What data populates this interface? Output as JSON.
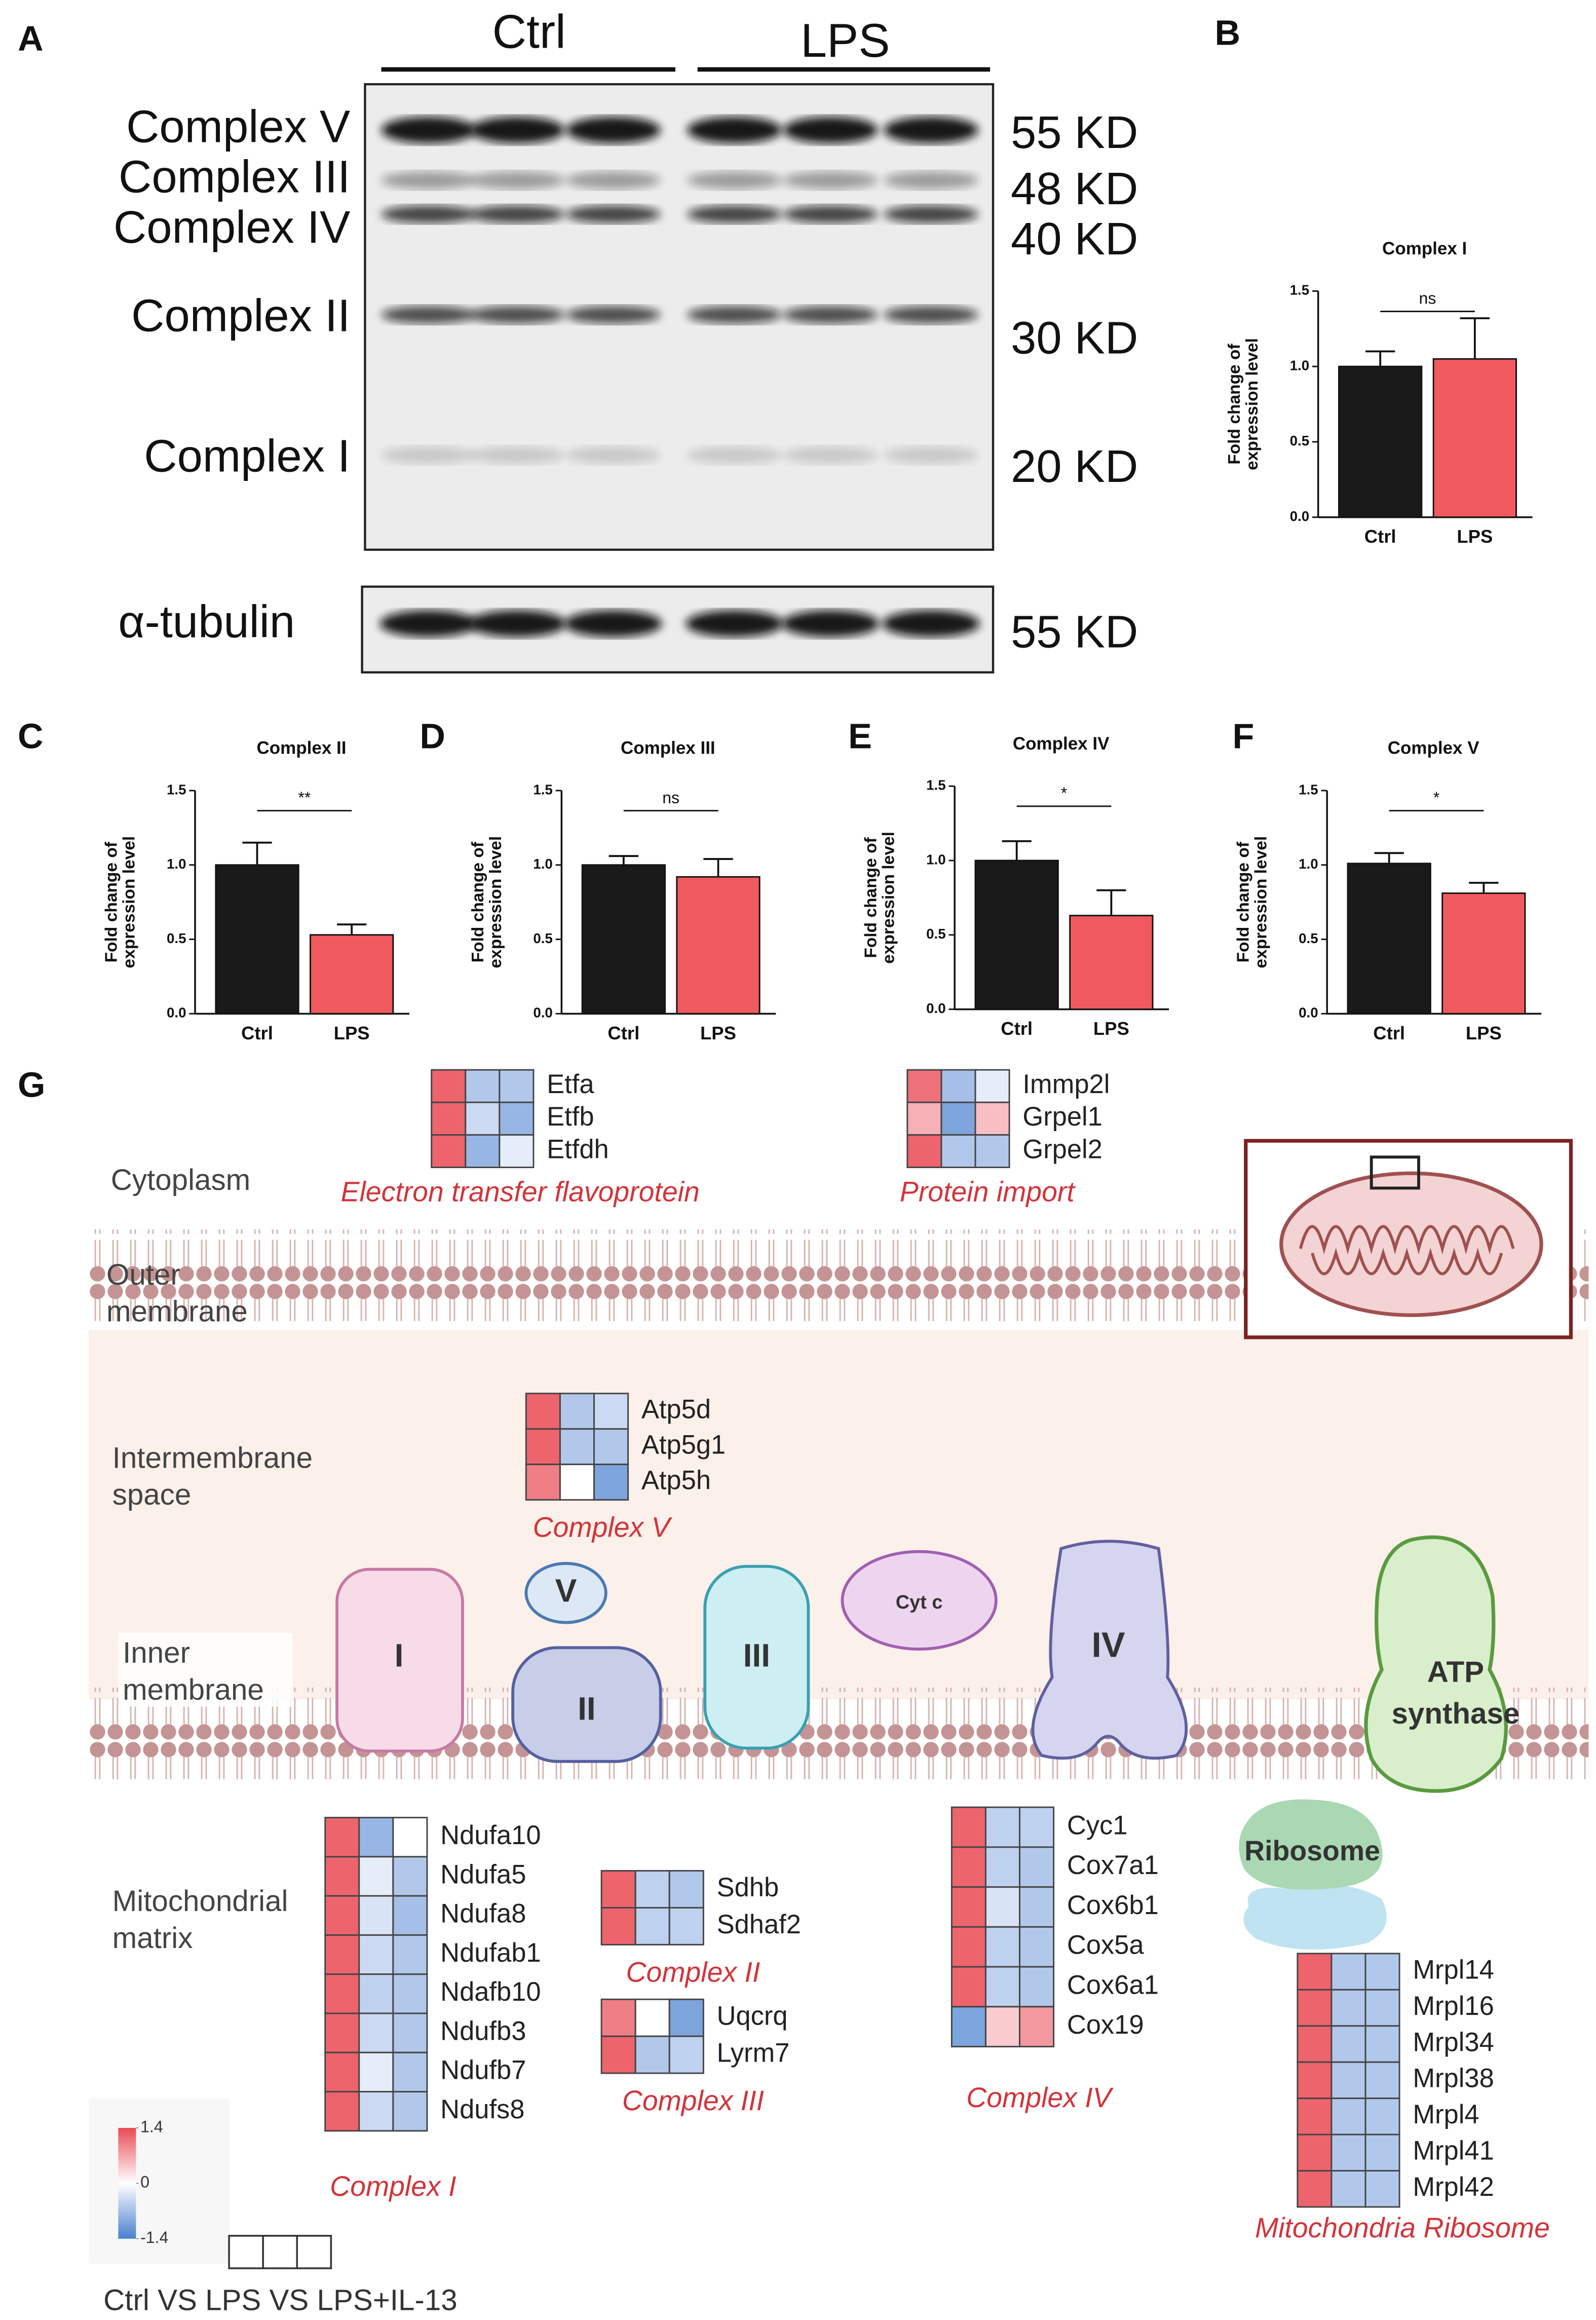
{
  "blot": {
    "panel": "A",
    "groups": [
      "Ctrl",
      "LPS"
    ],
    "bands": [
      "Complex V",
      "Complex III",
      "Complex IV",
      "Complex II",
      "Complex I"
    ],
    "sizes": [
      "55 KD",
      "48 KD",
      "40 KD",
      "30 KD",
      "20 KD"
    ],
    "loading": "α-tubulin",
    "loading_size": "55 KD"
  },
  "chart_data": [
    {
      "type": "bar",
      "panel": "B",
      "title": "Complex I",
      "y_label": [
        "Fold change of",
        "expression level"
      ],
      "categories": [
        "Ctrl",
        "LPS"
      ],
      "values": [
        1.0,
        1.05
      ],
      "errors": [
        0.1,
        0.27
      ],
      "colors": [
        "#1a1a1a",
        "#f05a5f"
      ],
      "annotation": "ns",
      "ylim": [
        0,
        1.5
      ],
      "yticks": [
        {
          "value": 0,
          "label": "0.0"
        },
        0.5,
        {
          "value": 1,
          "label": "1.0"
        },
        1.5
      ]
    },
    {
      "type": "bar",
      "panel": "C",
      "title": "Complex II",
      "y_label": [
        "Fold change of",
        "expression level"
      ],
      "categories": [
        "Ctrl",
        "LPS"
      ],
      "values": [
        1.0,
        0.53
      ],
      "errors": [
        0.15,
        0.07
      ],
      "colors": [
        "#1a1a1a",
        "#f05a5f"
      ],
      "annotation": "**",
      "ylim": [
        0,
        1.5
      ],
      "yticks": [
        {
          "value": 0,
          "label": "0.0"
        },
        0.5,
        {
          "value": 1,
          "label": "1.0"
        },
        1.5
      ]
    },
    {
      "type": "bar",
      "panel": "D",
      "title": "Complex III",
      "y_label": [
        "Fold change of",
        "expression level"
      ],
      "categories": [
        "Ctrl",
        "LPS"
      ],
      "values": [
        1.0,
        0.92
      ],
      "errors": [
        0.06,
        0.12
      ],
      "colors": [
        "#1a1a1a",
        "#f05a5f"
      ],
      "annotation": "ns",
      "ylim": [
        0,
        1.5
      ],
      "yticks": [
        {
          "value": 0,
          "label": "0.0"
        },
        0.5,
        {
          "value": 1,
          "label": "1.0"
        },
        1.5
      ]
    },
    {
      "type": "bar",
      "panel": "E",
      "title": "Complex IV",
      "y_label": [
        "Fold change of",
        "expression level"
      ],
      "categories": [
        "Ctrl",
        "LPS"
      ],
      "values": [
        1.0,
        0.63
      ],
      "errors": [
        0.13,
        0.17
      ],
      "colors": [
        "#1a1a1a",
        "#f05a5f"
      ],
      "annotation": "*",
      "ylim": [
        0,
        1.5
      ],
      "yticks": [
        {
          "value": 0,
          "label": "0.0"
        },
        0.5,
        {
          "value": 1,
          "label": "1.0"
        },
        1.5
      ]
    },
    {
      "type": "bar",
      "panel": "F",
      "title": "Complex V",
      "y_label": [
        "Fold change of",
        "expression level"
      ],
      "categories": [
        "Ctrl",
        "LPS"
      ],
      "values": [
        1.01,
        0.81
      ],
      "errors": [
        0.07,
        0.07
      ],
      "colors": [
        "#1a1a1a",
        "#f05a5f"
      ],
      "annotation": "*",
      "ylim": [
        0,
        1.5
      ],
      "yticks": [
        {
          "value": 0,
          "label": "0.0"
        },
        0.5,
        {
          "value": 1,
          "label": "1.0"
        },
        1.5
      ]
    }
  ],
  "diagram": {
    "panel": "G",
    "compartments": [
      [
        "Cytoplasm"
      ],
      [
        "Outer",
        "membrane"
      ],
      [
        "Intermembrane",
        "space"
      ],
      [
        "Inner",
        "membrane"
      ],
      [
        "Mitochondrial",
        "matrix"
      ]
    ],
    "proteins": [
      [
        "I"
      ],
      [
        "V"
      ],
      [
        "II"
      ],
      [
        "III"
      ],
      [
        "Cyt c"
      ],
      [
        "IV"
      ],
      [
        "ATP",
        "synthase"
      ],
      [
        "Ribosome"
      ]
    ]
  },
  "heatmaps": {
    "scale": {
      "min": -1.4,
      "max": 1.4,
      "ticks": [
        1.4,
        0,
        -1.4
      ],
      "colors": [
        "#4a7fd0",
        "#ffffff",
        "#ea4a55"
      ]
    },
    "columns_label": "Ctrl VS LPS VS LPS+IL-13",
    "groups": [
      {
        "title": "Electron transfer flavoprotein",
        "rows": [
          {
            "gene": "Etfa",
            "values": [
              1.2,
              -0.6,
              -0.6
            ]
          },
          {
            "gene": "Etfb",
            "values": [
              1.2,
              -0.4,
              -0.8
            ]
          },
          {
            "gene": "Etfdh",
            "values": [
              1.2,
              -0.8,
              -0.2
            ]
          }
        ]
      },
      {
        "title": "Protein import",
        "rows": [
          {
            "gene": "Immp2l",
            "values": [
              1.1,
              -0.7,
              -0.2
            ]
          },
          {
            "gene": "Grpel1",
            "values": [
              0.6,
              -1.0,
              0.5
            ]
          },
          {
            "gene": "Grpel2",
            "values": [
              1.2,
              -0.6,
              -0.6
            ]
          }
        ]
      },
      {
        "title": "Complex V",
        "rows": [
          {
            "gene": "Atp5d",
            "values": [
              1.2,
              -0.6,
              -0.4
            ]
          },
          {
            "gene": "Atp5g1",
            "values": [
              1.2,
              -0.6,
              -0.6
            ]
          },
          {
            "gene": "Atp5h",
            "values": [
              1.0,
              0,
              -1.0
            ]
          }
        ]
      },
      {
        "title": "Complex I",
        "rows": [
          {
            "gene": "Ndufa10",
            "values": [
              1.2,
              -0.8,
              0
            ]
          },
          {
            "gene": "Ndufa5",
            "values": [
              1.2,
              -0.2,
              -0.6
            ]
          },
          {
            "gene": "Ndufa8",
            "values": [
              1.2,
              -0.3,
              -0.7
            ]
          },
          {
            "gene": "Ndufab1",
            "values": [
              1.2,
              -0.4,
              -0.6
            ]
          },
          {
            "gene": "Ndafb10",
            "values": [
              1.2,
              -0.5,
              -0.6
            ]
          },
          {
            "gene": "Ndufb3",
            "values": [
              1.2,
              -0.4,
              -0.6
            ]
          },
          {
            "gene": "Ndufb7",
            "values": [
              1.2,
              -0.2,
              -0.6
            ]
          },
          {
            "gene": "Ndufs8",
            "values": [
              1.2,
              -0.4,
              -0.6
            ]
          }
        ]
      },
      {
        "title": "Complex II",
        "rows": [
          {
            "gene": "Sdhb",
            "values": [
              1.2,
              -0.5,
              -0.6
            ]
          },
          {
            "gene": "Sdhaf2",
            "values": [
              1.2,
              -0.5,
              -0.5
            ]
          }
        ]
      },
      {
        "title": "Complex III",
        "rows": [
          {
            "gene": "Uqcrq",
            "values": [
              1.0,
              0,
              -1.0
            ]
          },
          {
            "gene": "Lyrm7",
            "values": [
              1.2,
              -0.6,
              -0.5
            ]
          }
        ]
      },
      {
        "title": "Complex IV",
        "rows": [
          {
            "gene": "Cyc1",
            "values": [
              1.2,
              -0.5,
              -0.5
            ]
          },
          {
            "gene": "Cox7a1",
            "values": [
              1.2,
              -0.5,
              -0.6
            ]
          },
          {
            "gene": "Cox6b1",
            "values": [
              1.2,
              -0.3,
              -0.6
            ]
          },
          {
            "gene": "Cox5a",
            "values": [
              1.2,
              -0.5,
              -0.6
            ]
          },
          {
            "gene": "Cox6a1",
            "values": [
              1.2,
              -0.5,
              -0.6
            ]
          },
          {
            "gene": "Cox19",
            "values": [
              -1.0,
              0.4,
              0.8
            ]
          }
        ]
      },
      {
        "title": "Mitochondria Ribosome",
        "rows": [
          {
            "gene": "Mrpl14",
            "values": [
              1.2,
              -0.6,
              -0.6
            ]
          },
          {
            "gene": "Mrpl16",
            "values": [
              1.2,
              -0.6,
              -0.6
            ]
          },
          {
            "gene": "Mrpl34",
            "values": [
              1.2,
              -0.6,
              -0.6
            ]
          },
          {
            "gene": "Mrpl38",
            "values": [
              1.2,
              -0.6,
              -0.6
            ]
          },
          {
            "gene": "Mrpl4",
            "values": [
              1.2,
              -0.6,
              -0.6
            ]
          },
          {
            "gene": "Mrpl41",
            "values": [
              1.2,
              -0.6,
              -0.6
            ]
          },
          {
            "gene": "Mrpl42",
            "values": [
              1.2,
              -0.6,
              -0.6
            ]
          }
        ]
      }
    ]
  }
}
